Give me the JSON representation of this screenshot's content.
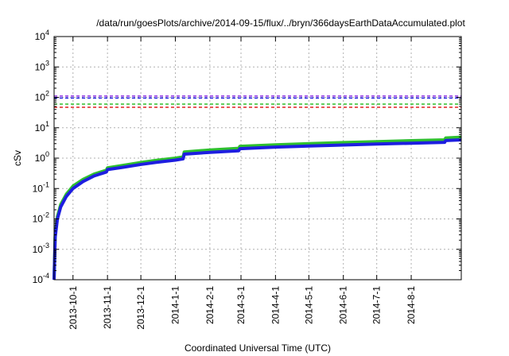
{
  "chart_data": {
    "type": "line",
    "title": "/data/run/goesPlots/archive/2014-09-15/flux/../bryn/366daysEarthDataAccumulated.plot",
    "xlabel": "Coordinated Universal Time (UTC)",
    "ylabel": "cSv",
    "scale": {
      "y": "log"
    },
    "xlim": [
      "2013-09-14",
      "2014-09-15"
    ],
    "ylim": [
      0.0001,
      10000
    ],
    "grid": true,
    "x_ticks": [
      "2013-10-1",
      "2013-11-1",
      "2013-12-1",
      "2014-1-1",
      "2014-2-1",
      "2014-3-1",
      "2014-4-1",
      "2014-5-1",
      "2014-6-1",
      "2014-7-1",
      "2014-8-1"
    ],
    "y_ticks": [
      {
        "value": 0.0001,
        "base": "10",
        "exp": "-4"
      },
      {
        "value": 0.001,
        "base": "10",
        "exp": "-3"
      },
      {
        "value": 0.01,
        "base": "10",
        "exp": "-2"
      },
      {
        "value": 0.1,
        "base": "10",
        "exp": "-1"
      },
      {
        "value": 1,
        "base": "10",
        "exp": "0"
      },
      {
        "value": 10,
        "base": "10",
        "exp": "1"
      },
      {
        "value": 100,
        "base": "10",
        "exp": "2"
      },
      {
        "value": 1000,
        "base": "10",
        "exp": "3"
      },
      {
        "value": 10000,
        "base": "10",
        "exp": "4"
      }
    ],
    "reference_lines": [
      {
        "y": 110,
        "color": "#8a2be2"
      },
      {
        "y": 95,
        "color": "#1e1ee0"
      },
      {
        "y": 60,
        "color": "#2fc02f"
      },
      {
        "y": 47,
        "color": "#e02020"
      }
    ],
    "series": [
      {
        "color": "#2fc02f",
        "points": [
          [
            "2013-09-14",
            0.0001
          ],
          [
            "2013-09-15",
            0.003
          ],
          [
            "2013-09-17",
            0.012
          ],
          [
            "2013-09-20",
            0.03
          ],
          [
            "2013-09-25",
            0.065
          ],
          [
            "2013-10-01",
            0.12
          ],
          [
            "2013-10-10",
            0.2
          ],
          [
            "2013-10-20",
            0.3
          ],
          [
            "2013-10-31",
            0.4
          ],
          [
            "2013-11-01",
            0.48
          ],
          [
            "2013-11-15",
            0.58
          ],
          [
            "2013-12-01",
            0.72
          ],
          [
            "2013-12-15",
            0.85
          ],
          [
            "2014-01-01",
            1.0
          ],
          [
            "2014-01-08",
            1.1
          ],
          [
            "2014-01-09",
            1.6
          ],
          [
            "2014-02-01",
            1.85
          ],
          [
            "2014-02-27",
            2.1
          ],
          [
            "2014-02-28",
            2.45
          ],
          [
            "2014-04-01",
            2.75
          ],
          [
            "2014-05-01",
            3.0
          ],
          [
            "2014-06-01",
            3.25
          ],
          [
            "2014-07-01",
            3.5
          ],
          [
            "2014-08-01",
            3.75
          ],
          [
            "2014-08-31",
            4.0
          ],
          [
            "2014-09-01",
            4.6
          ],
          [
            "2014-09-15",
            4.9
          ]
        ]
      },
      {
        "color": "#1e1ee0",
        "points": [
          [
            "2013-09-14",
            0.0001
          ],
          [
            "2013-09-15",
            0.0025
          ],
          [
            "2013-09-17",
            0.01
          ],
          [
            "2013-09-20",
            0.025
          ],
          [
            "2013-09-25",
            0.055
          ],
          [
            "2013-10-01",
            0.1
          ],
          [
            "2013-10-10",
            0.17
          ],
          [
            "2013-10-20",
            0.26
          ],
          [
            "2013-10-31",
            0.35
          ],
          [
            "2013-11-01",
            0.42
          ],
          [
            "2013-11-15",
            0.5
          ],
          [
            "2013-12-01",
            0.62
          ],
          [
            "2013-12-15",
            0.73
          ],
          [
            "2014-01-01",
            0.86
          ],
          [
            "2014-01-08",
            0.95
          ],
          [
            "2014-01-09",
            1.35
          ],
          [
            "2014-02-01",
            1.55
          ],
          [
            "2014-02-27",
            1.75
          ],
          [
            "2014-02-28",
            2.05
          ],
          [
            "2014-04-01",
            2.3
          ],
          [
            "2014-05-01",
            2.5
          ],
          [
            "2014-06-01",
            2.7
          ],
          [
            "2014-07-01",
            2.9
          ],
          [
            "2014-08-01",
            3.1
          ],
          [
            "2014-08-31",
            3.3
          ],
          [
            "2014-09-01",
            3.8
          ],
          [
            "2014-09-15",
            4.0
          ]
        ]
      }
    ]
  }
}
